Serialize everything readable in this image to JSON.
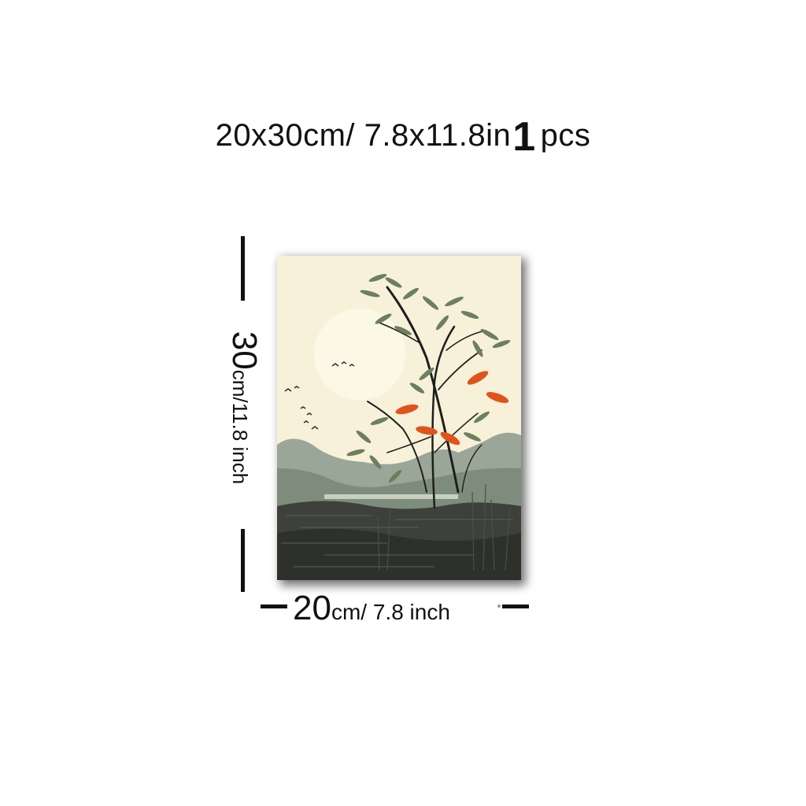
{
  "headline": {
    "size_text": "20x30cm/ 7.8x11.8in",
    "quantity": "1",
    "unit": "pcs"
  },
  "height_label": {
    "number": "30",
    "unit_text": "cm/11.8 inch"
  },
  "width_label": {
    "number": "20",
    "unit_text": "cm/ 7.8 inch"
  },
  "artwork": {
    "subject": "bamboo-landscape-painting",
    "colors": {
      "sky": "#f7f1da",
      "sun": "#fbf8e6",
      "hills": "#8f9c8d",
      "hills_dark": "#3a3d38",
      "leaves": "#6c7f5e",
      "accent_leaves": "#e0541c",
      "stems": "#1e1f1c"
    }
  }
}
